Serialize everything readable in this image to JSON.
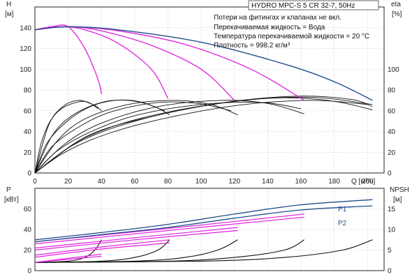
{
  "title": "HYDRO MPC-S 5 CR 32-7, 50Hz",
  "notes": [
    "Потери на фитингах и клапанах не вкл.",
    "Перекачиваемая жидкость = Вода",
    "Температура перекачиваемой жидкости = 20 °C",
    "Плотность = 998.2 кг/м³"
  ],
  "colors": {
    "pump": "#e01fe0",
    "system": "#1f4e8c",
    "efficiency": "#111111",
    "grid": "#c8c8c8"
  },
  "chart_data": [
    {
      "type": "line",
      "x_label": "Q [м³/ч]",
      "xlim": [
        0,
        210
      ],
      "x_ticks": [
        0,
        20,
        40,
        60,
        80,
        100,
        120,
        140,
        160,
        180,
        200
      ],
      "left_axis": {
        "label": "H",
        "unit": "[м]",
        "ylim": [
          0,
          160
        ],
        "ticks": [
          0,
          20,
          40,
          60,
          80,
          100,
          120,
          140
        ]
      },
      "right_axis": {
        "label": "eta",
        "unit": "[%]",
        "ylim": [
          0,
          160
        ],
        "ticks": [
          0,
          20,
          40,
          60,
          80,
          100
        ]
      },
      "head_curves": [
        {
          "points": [
            [
              0,
              138
            ],
            [
              10,
              141
            ],
            [
              20,
              141
            ],
            [
              30,
              120
            ],
            [
              38,
              90
            ],
            [
              40,
              76
            ]
          ]
        },
        {
          "points": [
            [
              0,
              138
            ],
            [
              15,
              141
            ],
            [
              30,
              138
            ],
            [
              50,
              125
            ],
            [
              70,
              100
            ],
            [
              80,
              72
            ]
          ]
        },
        {
          "points": [
            [
              0,
              138
            ],
            [
              20,
              141
            ],
            [
              40,
              137
            ],
            [
              70,
              123
            ],
            [
              100,
              100
            ],
            [
              120,
              70
            ]
          ]
        },
        {
          "points": [
            [
              0,
              138
            ],
            [
              20,
              141
            ],
            [
              50,
              137
            ],
            [
              90,
              124
            ],
            [
              130,
              100
            ],
            [
              162,
              70
            ]
          ]
        }
      ],
      "system_curve": {
        "points": [
          [
            0,
            138
          ],
          [
            20,
            141
          ],
          [
            50,
            138
          ],
          [
            100,
            126
          ],
          [
            150,
            105
          ],
          [
            180,
            88
          ],
          [
            203,
            70
          ]
        ]
      },
      "efficiency_curves": [
        {
          "points": [
            [
              0,
              0
            ],
            [
              8,
              45
            ],
            [
              16,
              63
            ],
            [
              26,
              70
            ],
            [
              36,
              65
            ],
            [
              40,
              60
            ]
          ]
        },
        {
          "points": [
            [
              0,
              0
            ],
            [
              4,
              30
            ],
            [
              10,
              52
            ],
            [
              18,
              64
            ],
            [
              30,
              69
            ],
            [
              38,
              62
            ]
          ]
        },
        {
          "points": [
            [
              0,
              0
            ],
            [
              10,
              35
            ],
            [
              22,
              55
            ],
            [
              40,
              68
            ],
            [
              58,
              70
            ],
            [
              72,
              64
            ],
            [
              81,
              56
            ]
          ]
        },
        {
          "points": [
            [
              0,
              0
            ],
            [
              7,
              28
            ],
            [
              18,
              48
            ],
            [
              32,
              63
            ],
            [
              48,
              70
            ],
            [
              64,
              68
            ],
            [
              78,
              60
            ]
          ]
        },
        {
          "points": [
            [
              0,
              0
            ],
            [
              14,
              32
            ],
            [
              30,
              52
            ],
            [
              56,
              66
            ],
            [
              84,
              70
            ],
            [
              106,
              66
            ],
            [
              122,
              56
            ]
          ]
        },
        {
          "points": [
            [
              0,
              0
            ],
            [
              10,
              25
            ],
            [
              26,
              44
            ],
            [
              46,
              59
            ],
            [
              74,
              68
            ],
            [
              98,
              67
            ],
            [
              118,
              60
            ]
          ]
        },
        {
          "points": [
            [
              0,
              0
            ],
            [
              18,
              28
            ],
            [
              40,
              48
            ],
            [
              74,
              64
            ],
            [
              112,
              70
            ],
            [
              140,
              67
            ],
            [
              162,
              57
            ]
          ]
        },
        {
          "points": [
            [
              0,
              0
            ],
            [
              14,
              22
            ],
            [
              34,
              40
            ],
            [
              62,
              56
            ],
            [
              100,
              66
            ],
            [
              136,
              68
            ],
            [
              160,
              62
            ]
          ]
        },
        {
          "points": [
            [
              0,
              0
            ],
            [
              22,
              26
            ],
            [
              50,
              45
            ],
            [
              92,
              62
            ],
            [
              140,
              72
            ],
            [
              176,
              70
            ],
            [
              203,
              61
            ]
          ]
        },
        {
          "points": [
            [
              0,
              0
            ],
            [
              18,
              20
            ],
            [
              44,
              38
            ],
            [
              82,
              54
            ],
            [
              126,
              66
            ],
            [
              168,
              70
            ],
            [
              200,
              66
            ]
          ]
        },
        {
          "points": [
            [
              0,
              0
            ],
            [
              28,
              32
            ],
            [
              62,
              52
            ],
            [
              110,
              67
            ],
            [
              156,
              74
            ],
            [
              190,
              71
            ],
            [
              203,
              64
            ]
          ]
        },
        {
          "points": [
            [
              0,
              0
            ],
            [
              32,
              36
            ],
            [
              72,
              55
            ],
            [
              120,
              69
            ],
            [
              166,
              73
            ],
            [
              203,
              66
            ]
          ]
        }
      ]
    },
    {
      "type": "line",
      "left_axis": {
        "label": "P",
        "unit": "[кВт]",
        "ylim": [
          0,
          80
        ],
        "ticks": [
          0,
          20,
          40,
          60
        ]
      },
      "right_axis": {
        "label": "NPSH",
        "unit": "[м]",
        "ylim": [
          0,
          20
        ],
        "ticks": [
          0,
          5,
          10,
          15
        ]
      },
      "power_series_labels": [
        "P1",
        "P2"
      ],
      "power_system": [
        {
          "name": "P1",
          "points": [
            [
              0,
              30
            ],
            [
              40,
              37
            ],
            [
              80,
              45
            ],
            [
              120,
              55
            ],
            [
              160,
              64
            ],
            [
              203,
              69
            ]
          ]
        },
        {
          "name": "P2",
          "points": [
            [
              0,
              28
            ],
            [
              40,
              35
            ],
            [
              80,
              42
            ],
            [
              120,
              51
            ],
            [
              160,
              59
            ],
            [
              203,
              63
            ]
          ]
        }
      ],
      "power_pump": [
        {
          "points": [
            [
              0,
              8
            ],
            [
              20,
              12
            ],
            [
              40,
              16
            ]
          ]
        },
        {
          "points": [
            [
              0,
              8
            ],
            [
              20,
              11
            ],
            [
              40,
              14
            ]
          ]
        },
        {
          "points": [
            [
              0,
              15
            ],
            [
              40,
              23
            ],
            [
              81,
              30
            ]
          ]
        },
        {
          "points": [
            [
              0,
              13
            ],
            [
              40,
              21
            ],
            [
              81,
              27
            ]
          ]
        },
        {
          "points": [
            [
              0,
              22
            ],
            [
              60,
              32
            ],
            [
              122,
              42
            ]
          ]
        },
        {
          "points": [
            [
              0,
              20
            ],
            [
              60,
              30
            ],
            [
              122,
              39
            ]
          ]
        },
        {
          "points": [
            [
              0,
              28
            ],
            [
              80,
              41
            ],
            [
              162,
              55
            ]
          ]
        },
        {
          "points": [
            [
              0,
              26
            ],
            [
              80,
              39
            ],
            [
              162,
              52
            ]
          ]
        }
      ],
      "npsh_curves": [
        {
          "points": [
            [
              0,
              2
            ],
            [
              20,
              2.3
            ],
            [
              30,
              3.2
            ],
            [
              36,
              5
            ],
            [
              40,
              7.5
            ]
          ]
        },
        {
          "points": [
            [
              0,
              2
            ],
            [
              40,
              2.3
            ],
            [
              60,
              3.2
            ],
            [
              74,
              5
            ],
            [
              81,
              7.5
            ]
          ]
        },
        {
          "points": [
            [
              0,
              2
            ],
            [
              60,
              2.3
            ],
            [
              90,
              3.2
            ],
            [
              110,
              5
            ],
            [
              122,
              7.5
            ]
          ]
        },
        {
          "points": [
            [
              0,
              2
            ],
            [
              80,
              2.3
            ],
            [
              120,
              3.2
            ],
            [
              150,
              5
            ],
            [
              162,
              7.5
            ]
          ]
        },
        {
          "points": [
            [
              0,
              2
            ],
            [
              100,
              2.3
            ],
            [
              150,
              3.2
            ],
            [
              185,
              5
            ],
            [
              203,
              7.5
            ]
          ]
        }
      ]
    }
  ]
}
